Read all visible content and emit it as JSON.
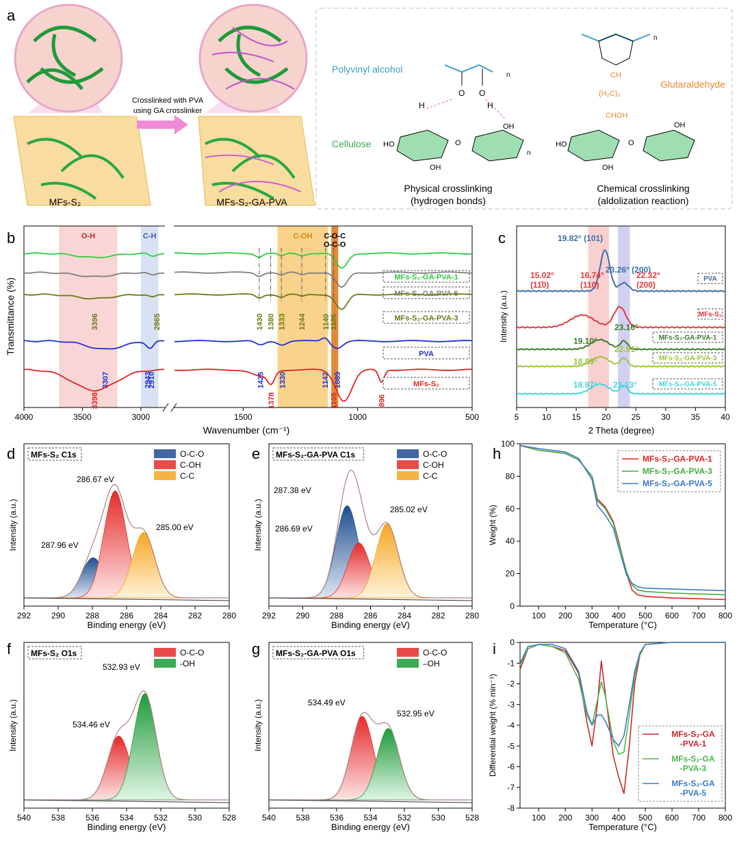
{
  "panel_a": {
    "letter": "a",
    "left_label": "MFs-S₂",
    "right_label": "MFs-S₂-GA-PVA",
    "arrow_text_1": "Crosslinked with PVA",
    "arrow_text_2": "using GA crosslinker",
    "pva_label": "Polyvinyl alcohol",
    "cellulose_label": "Cellulose",
    "ga_label": "Glutaraldehyde",
    "physical_title": "Physical crosslinking",
    "physical_sub": "(hydrogen bonds)",
    "chemical_title": "Chemical crosslinking",
    "chemical_sub": "(aldolization reaction)",
    "chem_texts": [
      "O",
      "O",
      "H",
      "H",
      "OH",
      "OH",
      "HO",
      "HO",
      "OH",
      "OH",
      "O",
      "O",
      "n",
      "n",
      "n",
      "CH",
      "(H₂C)₃",
      "CHOH"
    ]
  },
  "chart_data": [
    {
      "id": "b",
      "type": "line",
      "xlabel": "Wavenumber (cm⁻¹)",
      "ylabel": "Transmittance (%)",
      "xticks": [
        4000,
        3500,
        3000,
        1500,
        1000,
        500
      ],
      "bands": [
        {
          "label": "O-H",
          "range": [
            3200,
            3700
          ],
          "color": "#f7c4c4"
        },
        {
          "label": "C-H",
          "range": [
            2850,
            3000
          ],
          "color": "#c7d6ec"
        },
        {
          "label": "C-OH",
          "range": [
            1130,
            1350
          ],
          "color": "#f6c15a"
        },
        {
          "label": "C-O-C\nO-C-O",
          "range": [
            1085,
            1115
          ],
          "color": "#e07b1f"
        }
      ],
      "series": [
        {
          "name": "MFs-S₂-GA-PVA-1",
          "color": "#2ecc40",
          "peaks": []
        },
        {
          "name": "MFs-S₂-GA-PVA-5",
          "color": "#7f7f7f",
          "peaks": []
        },
        {
          "name": "MFs-S₂-GA-PVA-3",
          "color": "#6b7a14",
          "peaks": [
            3396,
            2865,
            1430,
            1380,
            1333,
            1244,
            1140,
            1106
          ]
        },
        {
          "name": "PVA",
          "color": "#1f2fd1",
          "peaks": [
            3307,
            2943,
            2910,
            1425,
            1330,
            1142,
            1089
          ]
        },
        {
          "name": "MFs-S₂",
          "color": "#e02424",
          "peaks": [
            3398,
            1378,
            1105,
            896
          ]
        }
      ]
    },
    {
      "id": "c",
      "type": "line",
      "xlabel": "2 Theta (degree)",
      "ylabel": "Intensity (a.u.)",
      "xlim": [
        5,
        40
      ],
      "xticks": [
        5,
        10,
        15,
        20,
        25,
        30,
        35,
        40
      ],
      "series": [
        {
          "name": "PVA",
          "color": "#3b6ea8",
          "peaks": [
            {
              "x": 19.82,
              "label": "19.82° (101)"
            },
            {
              "x": 23.26,
              "label": "23.26° (200)"
            }
          ]
        },
        {
          "name": "MFs-S₂",
          "color": "#e03a3a",
          "peaks": [
            {
              "x": 15.02,
              "label": "15.02°\n(11̄0)"
            },
            {
              "x": 16.74,
              "label": "16.74°\n(110)"
            },
            {
              "x": 22.32,
              "label": "22.32°\n(200)"
            }
          ]
        },
        {
          "name": "MFs-S₂-GA-PVA-1",
          "color": "#3a7a2c",
          "peaks": [
            {
              "x": 19.1,
              "label": "19.10°"
            },
            {
              "x": 23.16,
              "label": "23.16°"
            }
          ]
        },
        {
          "name": "MFs-S₂-GA-PVA-3",
          "color": "#9cc23c",
          "peaks": [
            {
              "x": 18.89,
              "label": "18.89°"
            },
            {
              "x": 22.91,
              "label": "22.91°"
            }
          ]
        },
        {
          "name": "MFs-S₂-GA-PVA-5",
          "color": "#3fd6de",
          "peaks": [
            {
              "x": 18.97,
              "label": "18.97°"
            },
            {
              "x": 23.13,
              "label": "23.13°"
            }
          ]
        }
      ]
    },
    {
      "id": "d",
      "title": "MFs-S₂ C1s",
      "type": "area",
      "xlabel": "Binding energy (eV)",
      "ylabel": "Intensity (a.u.)",
      "xlim": [
        292,
        280
      ],
      "xticks": [
        292,
        290,
        288,
        286,
        284,
        282,
        280
      ],
      "legend": [
        "O-C-O",
        "C-OH",
        "C-C"
      ],
      "peaks": [
        {
          "name": "O-C-O",
          "x": 287.96,
          "label": "287.96 eV",
          "height": 0.27
        },
        {
          "name": "C-OH",
          "x": 286.67,
          "label": "286.67 eV",
          "height": 0.72
        },
        {
          "name": "C-C",
          "x": 285.0,
          "label": "285.00 eV",
          "height": 0.44
        }
      ]
    },
    {
      "id": "e",
      "title": "MFs-S₂-GA-PVA C1s",
      "type": "area",
      "xlabel": "Binding energy (eV)",
      "ylabel": "Intensity (a.u.)",
      "xlim": [
        292,
        280
      ],
      "xticks": [
        292,
        290,
        288,
        286,
        284,
        282,
        280
      ],
      "legend": [
        "O-C-O",
        "C-OH",
        "C-C"
      ],
      "peaks": [
        {
          "name": "O-C-O",
          "x": 287.38,
          "label": "287.38 eV",
          "height": 0.62
        },
        {
          "name": "C-OH",
          "x": 286.69,
          "label": "286.69 eV",
          "height": 0.37
        },
        {
          "name": "C-C",
          "x": 285.02,
          "label": "285.02 eV",
          "height": 0.5
        }
      ]
    },
    {
      "id": "f",
      "title": "MFs-S₂ O1s",
      "type": "area",
      "xlabel": "Binding energy (eV)",
      "ylabel": "Intensity (a.u.)",
      "xlim": [
        540,
        528
      ],
      "xticks": [
        540,
        538,
        536,
        534,
        532,
        530,
        528
      ],
      "legend": [
        "O-C-O",
        "-OH"
      ],
      "peaks": [
        {
          "name": "O-C-O",
          "x": 534.46,
          "label": "534.46 eV",
          "height": 0.42
        },
        {
          "name": "-OH",
          "x": 532.93,
          "label": "532.93 eV",
          "height": 0.7
        }
      ]
    },
    {
      "id": "g",
      "title": "MFs-S₂-GA-PVA O1s",
      "type": "area",
      "xlabel": "Binding energy (eV)",
      "ylabel": "Intensity (a.u.)",
      "xlim": [
        540,
        528
      ],
      "xticks": [
        540,
        538,
        536,
        534,
        532,
        530,
        528
      ],
      "legend": [
        "O-C-O",
        "–OH"
      ],
      "peaks": [
        {
          "name": "O-C-O",
          "x": 534.49,
          "label": "534.49 eV",
          "height": 0.55
        },
        {
          "name": "–OH",
          "x": 532.95,
          "label": "532.95 eV",
          "height": 0.47
        }
      ]
    },
    {
      "id": "h",
      "type": "line",
      "xlabel": "Temperature (°C)",
      "ylabel": "Weight (%)",
      "xlim": [
        30,
        800
      ],
      "ylim": [
        0,
        100
      ],
      "xticks": [
        100,
        200,
        300,
        400,
        500,
        600,
        700,
        800
      ],
      "yticks": [
        0,
        20,
        40,
        60,
        80,
        100
      ],
      "legend_position": "top-right",
      "series": [
        {
          "name": "MFs-S₂-GA-PVA-1",
          "color": "#e02424",
          "x": [
            30,
            100,
            200,
            250,
            300,
            320,
            350,
            380,
            400,
            430,
            450,
            470,
            500,
            600,
            700,
            800
          ],
          "y": [
            99,
            96,
            94,
            90,
            80,
            66,
            61,
            52,
            40,
            20,
            10,
            7,
            6,
            5,
            4.5,
            4
          ]
        },
        {
          "name": "MFs-S₂-GA-PVA-3",
          "color": "#3fae3f",
          "x": [
            30,
            100,
            200,
            250,
            300,
            320,
            350,
            380,
            400,
            430,
            450,
            470,
            500,
            600,
            700,
            800
          ],
          "y": [
            99,
            96,
            94,
            90,
            80,
            65,
            60,
            51,
            39,
            21,
            13,
            10,
            9,
            8,
            7.5,
            7
          ]
        },
        {
          "name": "MFs-S₂-GA-PVA-5",
          "color": "#3a78c8",
          "x": [
            30,
            100,
            200,
            250,
            300,
            320,
            350,
            380,
            400,
            430,
            450,
            470,
            500,
            600,
            700,
            800
          ],
          "y": [
            99,
            97,
            95,
            91,
            78,
            62,
            56,
            48,
            36,
            19,
            14,
            12,
            11,
            10.5,
            10,
            9.5
          ]
        }
      ]
    },
    {
      "id": "i",
      "type": "line",
      "xlabel": "Temperature (°C)",
      "ylabel": "Differential weight (% min⁻¹)",
      "xlim": [
        30,
        800
      ],
      "ylim": [
        -8,
        0
      ],
      "xticks": [
        100,
        200,
        300,
        400,
        500,
        600,
        700,
        800
      ],
      "yticks": [
        0,
        -1,
        -2,
        -3,
        -4,
        -5,
        -6,
        -7,
        -8
      ],
      "legend_position": "bottom-right",
      "series": [
        {
          "name": "MFs-S₂-GA\n-PVA-1",
          "color": "#c8282d",
          "x": [
            30,
            60,
            100,
            150,
            200,
            250,
            280,
            300,
            320,
            335,
            350,
            380,
            400,
            420,
            440,
            460,
            480,
            500,
            600,
            700,
            800
          ],
          "y": [
            -1.3,
            -0.3,
            -0.1,
            -0.2,
            -0.4,
            -1.5,
            -3.8,
            -5.0,
            -3.0,
            -0.9,
            -2.5,
            -5.5,
            -6.5,
            -7.3,
            -5.0,
            -2.0,
            -0.6,
            -0.1,
            0,
            0,
            0
          ]
        },
        {
          "name": "MFs-S₂-GA\n-PVA-3",
          "color": "#4fb84a",
          "x": [
            30,
            60,
            100,
            150,
            200,
            250,
            280,
            300,
            320,
            335,
            350,
            380,
            400,
            420,
            440,
            460,
            480,
            500,
            600,
            700,
            800
          ],
          "y": [
            -1.1,
            -0.3,
            -0.1,
            -0.2,
            -0.5,
            -1.8,
            -3.5,
            -4.0,
            -2.8,
            -1.9,
            -2.6,
            -4.8,
            -5.4,
            -5.3,
            -3.5,
            -1.6,
            -0.6,
            -0.1,
            0,
            0,
            0
          ]
        },
        {
          "name": "MFs-S₂-GA\n-PVA-5",
          "color": "#3a7bc4",
          "x": [
            30,
            60,
            100,
            150,
            200,
            250,
            280,
            300,
            320,
            335,
            350,
            380,
            400,
            420,
            440,
            460,
            480,
            500,
            600,
            700,
            800
          ],
          "y": [
            -1.0,
            -0.2,
            -0.1,
            -0.1,
            -0.3,
            -1.4,
            -3.3,
            -4.0,
            -3.5,
            -3.5,
            -3.8,
            -4.7,
            -5.0,
            -4.5,
            -3.0,
            -1.4,
            -0.5,
            -0.1,
            0,
            0,
            0
          ]
        }
      ]
    }
  ],
  "panel_letters": [
    "b",
    "c",
    "d",
    "e",
    "f",
    "g",
    "h",
    "i"
  ],
  "colors": {
    "pink": "#f7c4c4",
    "orange": "#f6c15a",
    "green": "#3aa84a",
    "blue": "#3b6ea8"
  }
}
